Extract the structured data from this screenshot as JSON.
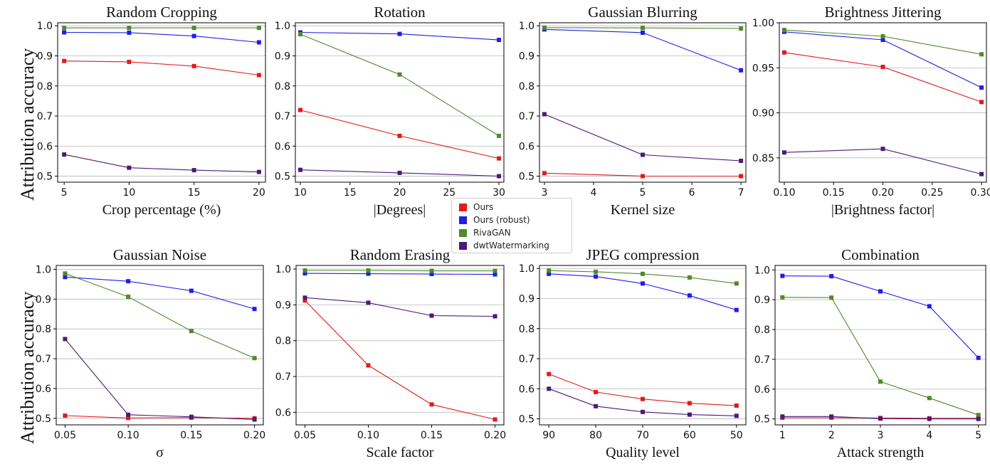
{
  "legend": {
    "entries": [
      {
        "name": "Ours",
        "color": "#e31a1c"
      },
      {
        "name": "Ours (robust)",
        "color": "#1f1fe6"
      },
      {
        "name": "RivaGAN",
        "color": "#4f8a2a"
      },
      {
        "name": "dwtWatermarking",
        "color": "#4b1a7a"
      }
    ]
  },
  "ylabel_top": "Attribution accuracy",
  "ylabel_bottom": "Attribution accuracy",
  "chart_data": [
    {
      "type": "line",
      "title": "Random Cropping",
      "xlabel": "Crop percentage (%)",
      "ylabel": "Attribution accuracy",
      "x": [
        5,
        10,
        15,
        20
      ],
      "xticks": [
        "5",
        "10",
        "15",
        "20"
      ],
      "xlim": [
        4.5,
        20.5
      ],
      "yticks": [
        "0.5",
        "0.6",
        "0.7",
        "0.8",
        "0.9",
        "1.0"
      ],
      "ytick_values": [
        0.5,
        0.6,
        0.7,
        0.8,
        0.9,
        1.0
      ],
      "ylim": [
        0.48,
        1.01
      ],
      "series": [
        {
          "name": "Ours",
          "values": [
            0.883,
            0.88,
            0.866,
            0.836
          ]
        },
        {
          "name": "Ours (robust)",
          "values": [
            0.978,
            0.977,
            0.966,
            0.945
          ]
        },
        {
          "name": "RivaGAN",
          "values": [
            0.993,
            0.993,
            0.993,
            0.993
          ]
        },
        {
          "name": "dwtWatermarking",
          "values": [
            0.572,
            0.528,
            0.52,
            0.514
          ]
        }
      ]
    },
    {
      "type": "line",
      "title": "Rotation",
      "xlabel": "|Degrees|",
      "ylabel": "",
      "x": [
        10,
        20,
        30
      ],
      "xticks": [
        "10",
        "15",
        "20",
        "25",
        "30"
      ],
      "xtick_values": [
        10,
        15,
        20,
        25,
        30
      ],
      "xlim": [
        9.5,
        30.5
      ],
      "yticks": [
        "0.5",
        "0.6",
        "0.7",
        "0.8",
        "0.9",
        "1.0"
      ],
      "ytick_values": [
        0.5,
        0.6,
        0.7,
        0.8,
        0.9,
        1.0
      ],
      "ylim": [
        0.48,
        1.01
      ],
      "series": [
        {
          "name": "Ours",
          "values": [
            0.72,
            0.634,
            0.559
          ]
        },
        {
          "name": "Ours (robust)",
          "values": [
            0.978,
            0.973,
            0.953
          ]
        },
        {
          "name": "RivaGAN",
          "values": [
            0.972,
            0.838,
            0.634
          ]
        },
        {
          "name": "dwtWatermarking",
          "values": [
            0.521,
            0.511,
            0.5
          ]
        }
      ]
    },
    {
      "type": "line",
      "title": "Gaussian Blurring",
      "xlabel": "Kernel size",
      "ylabel": "",
      "x": [
        3,
        5,
        7
      ],
      "xticks": [
        "3",
        "4",
        "5",
        "6",
        "7"
      ],
      "xtick_values": [
        3,
        4,
        5,
        6,
        7
      ],
      "xlim": [
        2.9,
        7.1
      ],
      "yticks": [
        "0.5",
        "0.6",
        "0.7",
        "0.8",
        "0.9",
        "1.0"
      ],
      "ytick_values": [
        0.5,
        0.6,
        0.7,
        0.8,
        0.9,
        1.0
      ],
      "ylim": [
        0.48,
        1.01
      ],
      "series": [
        {
          "name": "Ours",
          "values": [
            0.51,
            0.5,
            0.5
          ]
        },
        {
          "name": "Ours (robust)",
          "values": [
            0.988,
            0.977,
            0.852
          ]
        },
        {
          "name": "RivaGAN",
          "values": [
            0.994,
            0.993,
            0.991
          ]
        },
        {
          "name": "dwtWatermarking",
          "values": [
            0.706,
            0.571,
            0.551
          ]
        }
      ]
    },
    {
      "type": "line",
      "title": "Brightness Jittering",
      "xlabel": "|Brightness factor|",
      "ylabel": "",
      "x": [
        0.1,
        0.2,
        0.3
      ],
      "xticks": [
        "0.10",
        "0.15",
        "0.20",
        "0.25",
        "0.30"
      ],
      "xtick_values": [
        0.1,
        0.15,
        0.2,
        0.25,
        0.3
      ],
      "xlim": [
        0.095,
        0.305
      ],
      "yticks": [
        "0.85",
        "0.90",
        "0.95",
        "1.00"
      ],
      "ytick_values": [
        0.85,
        0.9,
        0.95,
        1.0
      ],
      "ylim": [
        0.823,
        1.0
      ],
      "series": [
        {
          "name": "Ours",
          "values": [
            0.967,
            0.951,
            0.912
          ]
        },
        {
          "name": "Ours (robust)",
          "values": [
            0.99,
            0.981,
            0.928
          ]
        },
        {
          "name": "RivaGAN",
          "values": [
            0.992,
            0.985,
            0.965
          ]
        },
        {
          "name": "dwtWatermarking",
          "values": [
            0.856,
            0.86,
            0.832
          ]
        }
      ]
    },
    {
      "type": "line",
      "title": "Gaussian Noise",
      "xlabel": "σ",
      "ylabel": "Attribution accuracy",
      "x": [
        0.05,
        0.1,
        0.15,
        0.2
      ],
      "xticks": [
        "0.05",
        "0.10",
        "0.15",
        "0.20"
      ],
      "xlim": [
        0.043,
        0.207
      ],
      "yticks": [
        "0.5",
        "0.6",
        "0.7",
        "0.8",
        "0.9",
        "1.0"
      ],
      "ytick_values": [
        0.5,
        0.6,
        0.7,
        0.8,
        0.9,
        1.0
      ],
      "ylim": [
        0.478,
        1.013
      ],
      "series": [
        {
          "name": "Ours",
          "values": [
            0.509,
            0.501,
            0.502,
            0.5
          ]
        },
        {
          "name": "Ours (robust)",
          "values": [
            0.974,
            0.96,
            0.928,
            0.867
          ]
        },
        {
          "name": "RivaGAN",
          "values": [
            0.986,
            0.908,
            0.793,
            0.702
          ]
        },
        {
          "name": "dwtWatermarking",
          "values": [
            0.766,
            0.512,
            0.505,
            0.496
          ]
        }
      ]
    },
    {
      "type": "line",
      "title": "Random Erasing",
      "xlabel": "Scale factor",
      "ylabel": "",
      "x": [
        0.05,
        0.1,
        0.15,
        0.2
      ],
      "xticks": [
        "0.05",
        "0.10",
        "0.15",
        "0.20"
      ],
      "xlim": [
        0.043,
        0.207
      ],
      "yticks": [
        "0.6",
        "0.7",
        "0.8",
        "0.9",
        "1.0"
      ],
      "ytick_values": [
        0.6,
        0.7,
        0.8,
        0.9,
        1.0
      ],
      "ylim": [
        0.565,
        1.01
      ],
      "series": [
        {
          "name": "Ours",
          "values": [
            0.912,
            0.731,
            0.622,
            0.58
          ]
        },
        {
          "name": "Ours (robust)",
          "values": [
            0.988,
            0.987,
            0.986,
            0.985
          ]
        },
        {
          "name": "RivaGAN",
          "values": [
            0.996,
            0.996,
            0.995,
            0.995
          ]
        },
        {
          "name": "dwtWatermarking",
          "values": [
            0.92,
            0.906,
            0.87,
            0.868
          ]
        }
      ]
    },
    {
      "type": "line",
      "title": "JPEG compression",
      "xlabel": "Quality level",
      "ylabel": "",
      "x": [
        90,
        80,
        70,
        60,
        50
      ],
      "xticks": [
        "90",
        "80",
        "70",
        "60",
        "50"
      ],
      "xlim": [
        92,
        48
      ],
      "inverted_x": true,
      "yticks": [
        "0.5",
        "0.6",
        "0.7",
        "0.8",
        "0.9",
        "1.0"
      ],
      "ytick_values": [
        0.5,
        0.6,
        0.7,
        0.8,
        0.9,
        1.0
      ],
      "ylim": [
        0.48,
        1.01
      ],
      "series": [
        {
          "name": "Ours",
          "values": [
            0.649,
            0.589,
            0.566,
            0.552,
            0.544
          ]
        },
        {
          "name": "Ours (robust)",
          "values": [
            0.982,
            0.973,
            0.95,
            0.91,
            0.862
          ]
        },
        {
          "name": "RivaGAN",
          "values": [
            0.993,
            0.989,
            0.982,
            0.97,
            0.95
          ]
        },
        {
          "name": "dwtWatermarking",
          "values": [
            0.6,
            0.542,
            0.523,
            0.514,
            0.51
          ]
        }
      ]
    },
    {
      "type": "line",
      "title": "Combination",
      "xlabel": "Attack strength",
      "ylabel": "",
      "x": [
        1,
        2,
        3,
        4,
        5
      ],
      "xticks": [
        "1",
        "2",
        "3",
        "4",
        "5"
      ],
      "xlim": [
        0.85,
        5.15
      ],
      "yticks": [
        "0.5",
        "0.6",
        "0.7",
        "0.8",
        "0.9",
        "1.0"
      ],
      "ytick_values": [
        0.5,
        0.6,
        0.7,
        0.8,
        0.9,
        1.0
      ],
      "ylim": [
        0.48,
        1.015
      ],
      "series": [
        {
          "name": "Ours",
          "values": [
            0.504,
            0.504,
            0.503,
            0.502,
            0.502
          ]
        },
        {
          "name": "Ours (robust)",
          "values": [
            0.98,
            0.979,
            0.928,
            0.878,
            0.705
          ]
        },
        {
          "name": "RivaGAN",
          "values": [
            0.908,
            0.907,
            0.625,
            0.57,
            0.513
          ]
        },
        {
          "name": "dwtWatermarking",
          "values": [
            0.508,
            0.508,
            0.501,
            0.5,
            0.5
          ]
        }
      ]
    }
  ]
}
